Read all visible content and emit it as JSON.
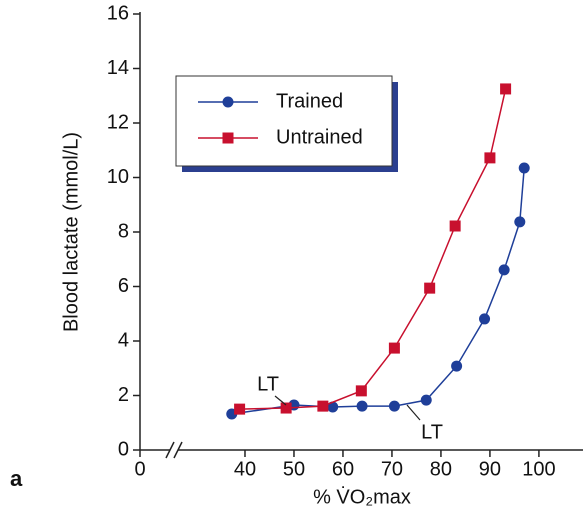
{
  "chart_data": {
    "type": "line",
    "panel_label": "a",
    "xlabel": "% V̇O₂max",
    "ylabel": "Blood lactate (mmol/L)",
    "xlim": [
      0,
      109
    ],
    "xbreak": [
      0,
      30
    ],
    "xticks": [
      0,
      40,
      50,
      60,
      70,
      80,
      90,
      100
    ],
    "ylim": [
      0,
      16
    ],
    "yticks": [
      0,
      2,
      4,
      6,
      8,
      10,
      12,
      14,
      16
    ],
    "legend": "upper left",
    "series": [
      {
        "name": "Trained",
        "color": "#1f3f99",
        "marker": "circle",
        "x": [
          37.3,
          50,
          57.9,
          63.9,
          70.5,
          77,
          83.2,
          88.9,
          92.9,
          96.1,
          97
        ],
        "values": [
          1.32,
          1.65,
          1.58,
          1.61,
          1.61,
          1.83,
          3.08,
          4.81,
          6.61,
          8.37,
          10.35
        ]
      },
      {
        "name": "Untrained",
        "color": "#c8102e",
        "marker": "square",
        "x": [
          38.9,
          48.4,
          55.9,
          63.75,
          70.5,
          77.7,
          82.9,
          90,
          93.2
        ],
        "values": [
          1.5,
          1.54,
          1.61,
          2.17,
          3.74,
          5.94,
          8.22,
          10.72,
          13.25
        ]
      }
    ],
    "annotations": [
      {
        "text": "LT",
        "series": 1
      },
      {
        "text": "LT",
        "series": 0
      }
    ]
  }
}
